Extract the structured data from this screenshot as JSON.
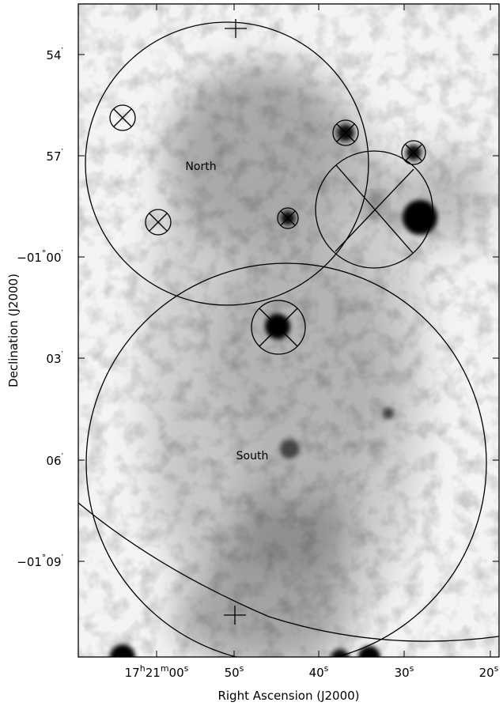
{
  "figure": {
    "x_axis_title": "Right Ascension (J2000)",
    "y_axis_title": "Declination (J2000)",
    "ra_ticks": [
      {
        "h": "17",
        "m": "21",
        "s": "00"
      },
      {
        "s": "50"
      },
      {
        "s": "40"
      },
      {
        "s": "30"
      },
      {
        "s": "20"
      }
    ],
    "dec_ticks": [
      {
        "deg": "",
        "min": "54"
      },
      {
        "deg": "",
        "min": "57"
      },
      {
        "deg": "−01",
        "min": "00"
      },
      {
        "deg": "",
        "min": "03"
      },
      {
        "deg": "",
        "min": "06"
      },
      {
        "deg": "−01",
        "min": "09"
      }
    ],
    "regions": [
      {
        "name": "North"
      },
      {
        "name": "South"
      }
    ],
    "colormap": "inverted greyscale",
    "image_type": "X-ray intensity map"
  }
}
